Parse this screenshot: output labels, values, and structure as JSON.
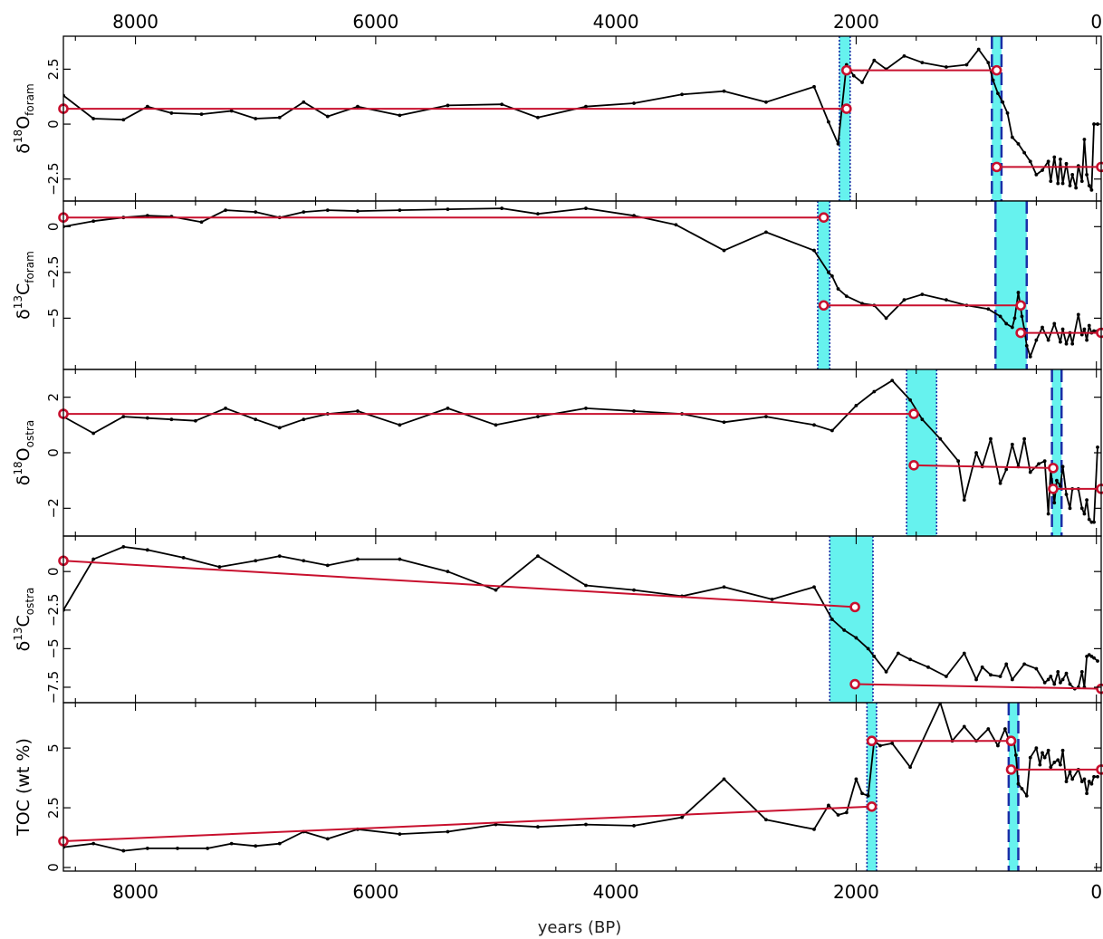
{
  "chart_data": {
    "type": "line",
    "xlabel": "years (BP)",
    "xlim": [
      8600,
      -40
    ],
    "x_ticks": [
      8000,
      6000,
      4000,
      2000,
      0
    ],
    "x_tick_labels": [
      "8000",
      "6000",
      "4000",
      "2000",
      "0"
    ],
    "colors": {
      "series": "#000000",
      "segment_fit": "#c8102e",
      "change_band": "#66f2ee",
      "band_edge": "#1a2fa8"
    },
    "panels": [
      {
        "id": "d18O-foram",
        "ylabel_main": "δ",
        "ylabel_sup": "18",
        "ylabel_base": "O",
        "ylabel_sub": "foram",
        "ylim": [
          -3.5,
          4.0
        ],
        "yticks": [
          2.5,
          0,
          -2.5
        ],
        "ytick_labels": [
          "2.5",
          "0",
          "−2.5"
        ],
        "series": {
          "x": [
            8600,
            8350,
            8100,
            7900,
            7700,
            7450,
            7200,
            7000,
            6800,
            6600,
            6400,
            6150,
            5800,
            5400,
            4950,
            4650,
            4250,
            3850,
            3450,
            3100,
            2750,
            2350,
            2230,
            2150,
            2080,
            2020,
            1950,
            1850,
            1750,
            1600,
            1450,
            1250,
            1080,
            980,
            900,
            860,
            820,
            780,
            740,
            700,
            650,
            600,
            550,
            500,
            450,
            400,
            380,
            350,
            320,
            300,
            280,
            250,
            220,
            200,
            170,
            150,
            120,
            100,
            80,
            60,
            40,
            20,
            -10
          ],
          "y": [
            1.3,
            0.25,
            0.2,
            0.8,
            0.5,
            0.45,
            0.6,
            0.25,
            0.3,
            1.0,
            0.35,
            0.8,
            0.4,
            0.85,
            0.9,
            0.3,
            0.8,
            0.95,
            1.35,
            1.5,
            1.0,
            1.7,
            0.1,
            -0.9,
            2.7,
            2.2,
            1.9,
            2.9,
            2.5,
            3.1,
            2.8,
            2.6,
            2.7,
            3.4,
            2.8,
            2.0,
            1.4,
            1.0,
            0.5,
            -0.6,
            -0.9,
            -1.3,
            -1.7,
            -2.3,
            -2.1,
            -1.7,
            -2.6,
            -1.5,
            -2.7,
            -1.6,
            -2.7,
            -1.8,
            -2.8,
            -2.3,
            -2.9,
            -1.9,
            -2.6,
            -0.7,
            -2.3,
            -2.8,
            -3.0,
            0.0,
            0.0
          ]
        },
        "fits": [
          {
            "x": [
              8600,
              2080
            ],
            "y": [
              0.7,
              0.7
            ]
          },
          {
            "x": [
              2080,
              830
            ],
            "y": [
              2.45,
              2.45
            ]
          },
          {
            "x": [
              830,
              -40
            ],
            "y": [
              -1.95,
              -1.95
            ]
          }
        ],
        "bands": [
          {
            "x": [
              2140,
              2050
            ],
            "edge": "dotted"
          },
          {
            "x": [
              870,
              790
            ],
            "edge": "dashed"
          }
        ]
      },
      {
        "id": "d13C-foram",
        "ylabel_main": "δ",
        "ylabel_sup": "13",
        "ylabel_base": "C",
        "ylabel_sub": "foram",
        "ylim": [
          -7.8,
          1.4
        ],
        "yticks": [
          0,
          -2.5,
          -5
        ],
        "ytick_labels": [
          "0",
          "−2.5",
          "−5"
        ],
        "series": {
          "x": [
            8600,
            8350,
            8100,
            7900,
            7700,
            7450,
            7250,
            7000,
            6800,
            6600,
            6400,
            6150,
            5800,
            5400,
            4950,
            4650,
            4250,
            3850,
            3500,
            3100,
            2750,
            2350,
            2230,
            2200,
            2150,
            2080,
            1950,
            1850,
            1750,
            1600,
            1450,
            1250,
            1080,
            900,
            800,
            750,
            700,
            680,
            650,
            620,
            600,
            580,
            550,
            500,
            450,
            400,
            350,
            300,
            280,
            250,
            220,
            200,
            150,
            120,
            100,
            80,
            60,
            40,
            20,
            -10
          ],
          "y": [
            0.0,
            0.3,
            0.5,
            0.6,
            0.55,
            0.25,
            0.9,
            0.8,
            0.5,
            0.8,
            0.9,
            0.85,
            0.9,
            0.95,
            1.0,
            0.7,
            1.0,
            0.6,
            0.1,
            -1.3,
            -0.3,
            -1.3,
            -2.5,
            -2.7,
            -3.4,
            -3.8,
            -4.2,
            -4.3,
            -5.0,
            -4.0,
            -3.7,
            -4.0,
            -4.3,
            -4.5,
            -4.9,
            -5.3,
            -5.5,
            -5.0,
            -3.6,
            -4.9,
            -5.6,
            -6.5,
            -7.1,
            -6.2,
            -5.5,
            -6.2,
            -5.3,
            -6.3,
            -5.6,
            -6.4,
            -5.8,
            -6.4,
            -4.8,
            -5.9,
            -5.6,
            -6.2,
            -5.4,
            -5.8,
            -5.7,
            -5.7
          ]
        },
        "fits": [
          {
            "x": [
              8600,
              2270
            ],
            "y": [
              0.5,
              0.5
            ]
          },
          {
            "x": [
              2270,
              630
            ],
            "y": [
              -4.3,
              -4.3
            ]
          },
          {
            "x": [
              630,
              -40
            ],
            "y": [
              -5.8,
              -5.8
            ]
          }
        ],
        "bands": [
          {
            "x": [
              2320,
              2220
            ],
            "edge": "dotted"
          },
          {
            "x": [
              840,
              580
            ],
            "edge": "dashed"
          }
        ]
      },
      {
        "id": "d18O-ostra",
        "ylabel_main": "δ",
        "ylabel_sup": "18",
        "ylabel_base": "O",
        "ylabel_sub": "ostra",
        "ylim": [
          -3.0,
          3.0
        ],
        "yticks": [
          2,
          0,
          -2
        ],
        "ytick_labels": [
          "2",
          "0",
          "−2"
        ],
        "series": {
          "x": [
            8600,
            8350,
            8100,
            7900,
            7700,
            7500,
            7250,
            7000,
            6800,
            6600,
            6400,
            6150,
            5800,
            5400,
            5000,
            4650,
            4250,
            3850,
            3450,
            3100,
            2750,
            2350,
            2200,
            2000,
            1850,
            1700,
            1550,
            1450,
            1300,
            1150,
            1100,
            1000,
            950,
            880,
            800,
            750,
            700,
            650,
            600,
            550,
            480,
            430,
            400,
            380,
            350,
            330,
            300,
            280,
            250,
            220,
            200,
            150,
            120,
            100,
            80,
            60,
            40,
            20,
            -10
          ],
          "y": [
            1.3,
            0.7,
            1.3,
            1.25,
            1.2,
            1.15,
            1.6,
            1.2,
            0.9,
            1.2,
            1.4,
            1.5,
            1.0,
            1.6,
            1.0,
            1.3,
            1.6,
            1.5,
            1.4,
            1.1,
            1.3,
            1.0,
            0.8,
            1.7,
            2.2,
            2.6,
            1.9,
            1.2,
            0.5,
            -0.3,
            -1.7,
            0.0,
            -0.5,
            0.5,
            -1.1,
            -0.6,
            0.3,
            -0.5,
            0.5,
            -0.7,
            -0.4,
            -0.3,
            -2.2,
            -0.6,
            -1.8,
            -1.0,
            -1.2,
            -0.5,
            -1.5,
            -2.0,
            -1.3,
            -1.3,
            -2.0,
            -2.2,
            -1.7,
            -2.4,
            -2.5,
            -2.5,
            0.2
          ]
        },
        "fits": [
          {
            "x": [
              8600,
              1520
            ],
            "y": [
              1.4,
              1.4
            ]
          },
          {
            "x": [
              1520,
              360
            ],
            "y": [
              -0.45,
              -0.55
            ]
          },
          {
            "x": [
              360,
              -40
            ],
            "y": [
              -1.3,
              -1.3
            ]
          }
        ],
        "bands": [
          {
            "x": [
              1580,
              1330
            ],
            "edge": "dotted"
          },
          {
            "x": [
              370,
              290
            ],
            "edge": "dashed"
          }
        ]
      },
      {
        "id": "d13C-ostra",
        "ylabel_main": "δ",
        "ylabel_sup": "13",
        "ylabel_base": "C",
        "ylabel_sub": "ostra",
        "ylim": [
          -8.5,
          2.3
        ],
        "yticks": [
          0,
          -2.5,
          -5,
          -7.5
        ],
        "ytick_labels": [
          "0",
          "−2.5",
          "−5",
          "−7.5"
        ],
        "series": {
          "x": [
            8600,
            8350,
            8100,
            7900,
            7600,
            7300,
            7000,
            6800,
            6600,
            6400,
            6150,
            5800,
            5400,
            5000,
            4650,
            4250,
            3850,
            3450,
            3100,
            2700,
            2350,
            2200,
            2100,
            2000,
            1900,
            1850,
            1750,
            1650,
            1550,
            1400,
            1250,
            1100,
            1000,
            950,
            880,
            800,
            750,
            700,
            600,
            500,
            430,
            400,
            380,
            350,
            320,
            300,
            280,
            250,
            220,
            180,
            150,
            120,
            100,
            80,
            60,
            40,
            20,
            -10
          ],
          "y": [
            -2.5,
            0.8,
            1.6,
            1.4,
            0.9,
            0.3,
            0.7,
            1.0,
            0.7,
            0.4,
            0.8,
            0.8,
            0.0,
            -1.2,
            1.0,
            -0.9,
            -1.2,
            -1.6,
            -1.0,
            -1.8,
            -1.0,
            -3.1,
            -3.8,
            -4.3,
            -5.0,
            -5.5,
            -6.5,
            -5.3,
            -5.7,
            -6.2,
            -6.8,
            -5.3,
            -7.0,
            -6.2,
            -6.7,
            -6.8,
            -6.0,
            -7.0,
            -6.0,
            -6.3,
            -7.2,
            -7.0,
            -6.8,
            -7.3,
            -6.5,
            -7.2,
            -7.0,
            -6.6,
            -7.3,
            -7.6,
            -7.5,
            -6.5,
            -7.5,
            -5.5,
            -5.4,
            -5.5,
            -5.6,
            -5.8
          ]
        },
        "fits": [
          {
            "x": [
              8600,
              2010
            ],
            "y": [
              0.7,
              -2.3
            ]
          },
          {
            "x": [
              2010,
              -40
            ],
            "y": [
              -7.3,
              -7.6
            ]
          }
        ],
        "bands": [
          {
            "x": [
              2220,
              1860
            ],
            "edge": "dotted"
          }
        ]
      },
      {
        "id": "TOC",
        "ylabel_main": "TOC (wt %)",
        "ylim": [
          -0.15,
          6.9
        ],
        "yticks": [
          0,
          2.5,
          5
        ],
        "ytick_labels": [
          "0",
          "2.5",
          "5"
        ],
        "series": {
          "x": [
            8600,
            8350,
            8100,
            7900,
            7650,
            7400,
            7200,
            7000,
            6800,
            6600,
            6400,
            6150,
            5800,
            5400,
            5000,
            4650,
            4250,
            3850,
            3450,
            3100,
            2750,
            2350,
            2230,
            2150,
            2080,
            2000,
            1950,
            1900,
            1850,
            1800,
            1700,
            1550,
            1300,
            1200,
            1100,
            1000,
            900,
            820,
            760,
            720,
            690,
            670,
            650,
            620,
            580,
            550,
            500,
            470,
            450,
            430,
            400,
            380,
            350,
            320,
            300,
            280,
            250,
            220,
            200,
            150,
            120,
            100,
            80,
            60,
            40,
            20,
            -10
          ],
          "y": [
            0.85,
            1.0,
            0.7,
            0.8,
            0.8,
            0.8,
            1.0,
            0.9,
            1.0,
            1.5,
            1.2,
            1.6,
            1.4,
            1.5,
            1.8,
            1.7,
            1.8,
            1.75,
            2.1,
            3.7,
            2.0,
            1.6,
            2.6,
            2.2,
            2.3,
            3.7,
            3.1,
            3.0,
            5.3,
            5.1,
            5.2,
            4.2,
            6.9,
            5.3,
            5.9,
            5.3,
            5.8,
            5.1,
            5.8,
            5.2,
            5.4,
            4.7,
            3.5,
            3.3,
            3.0,
            4.6,
            5.0,
            4.3,
            4.8,
            4.6,
            4.9,
            4.2,
            4.4,
            4.5,
            4.3,
            4.9,
            3.6,
            4.0,
            3.7,
            4.1,
            3.6,
            3.7,
            3.1,
            3.6,
            3.5,
            3.8,
            3.8
          ]
        },
        "fits": [
          {
            "x": [
              8600,
              1870
            ],
            "y": [
              1.1,
              2.55
            ]
          },
          {
            "x": [
              1870,
              710
            ],
            "y": [
              5.3,
              5.3
            ]
          },
          {
            "x": [
              710,
              -40
            ],
            "y": [
              4.1,
              4.1
            ]
          }
        ],
        "bands": [
          {
            "x": [
              1910,
              1830
            ],
            "edge": "dotted"
          },
          {
            "x": [
              730,
              650
            ],
            "edge": "dashed"
          }
        ]
      }
    ]
  }
}
